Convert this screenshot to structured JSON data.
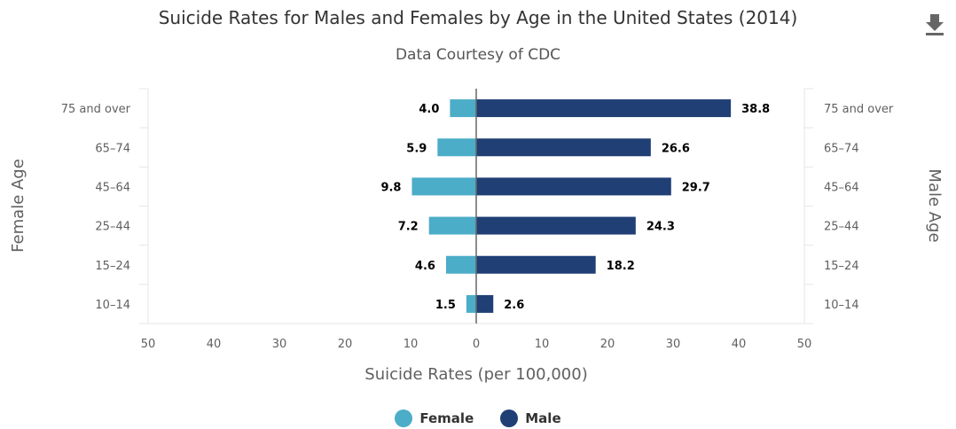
{
  "header": {
    "title": "Suicide Rates for Males and Females by Age in the United States (2014)",
    "subtitle": "Data Courtesy of CDC",
    "download_icon": "download-icon"
  },
  "colors": {
    "female": "#4BADC8",
    "male": "#1F3F75",
    "grid": "#E6E6E6",
    "zero_line": "#666666"
  },
  "legend": {
    "female_label": "Female",
    "male_label": "Male"
  },
  "chart_data": {
    "type": "bar",
    "orientation": "horizontal-butterfly",
    "categories": [
      "75 and over",
      "65–74",
      "45–64",
      "25–44",
      "15–24",
      "10–14"
    ],
    "series": [
      {
        "name": "Female",
        "values": [
          4.0,
          5.9,
          9.8,
          7.2,
          4.6,
          1.5
        ]
      },
      {
        "name": "Male",
        "values": [
          38.8,
          26.6,
          29.7,
          24.3,
          18.2,
          2.6
        ]
      }
    ],
    "x_ticks": [
      "50",
      "40",
      "30",
      "20",
      "10",
      "0",
      "10",
      "20",
      "30",
      "40",
      "50"
    ],
    "xlabel": "Suicide Rates (per 100,000)",
    "ylabel_left": "Female Age",
    "ylabel_right": "Male Age",
    "xlim": [
      -50,
      50
    ],
    "legend_position": "bottom-center",
    "grid": false
  }
}
